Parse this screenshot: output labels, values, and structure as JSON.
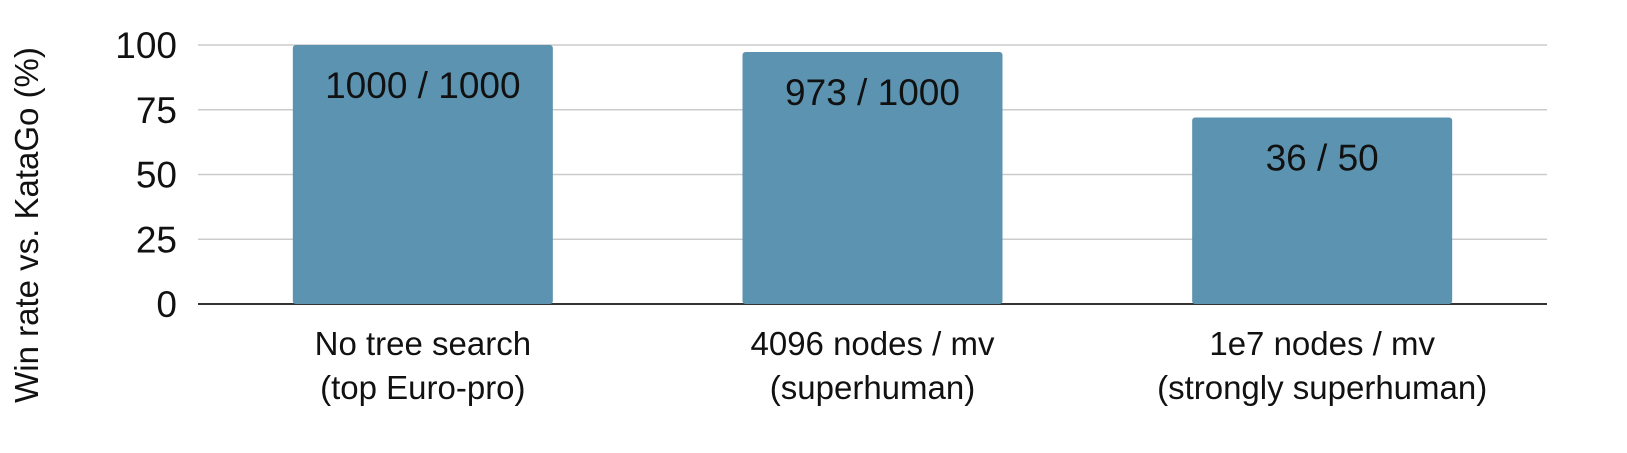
{
  "chart_data": {
    "type": "bar",
    "title": "",
    "xlabel": "",
    "ylabel": "Win rate vs. KataGo (%)",
    "ylim": [
      0,
      100
    ],
    "yticks": [
      0,
      25,
      50,
      75,
      100
    ],
    "grid": true,
    "categories": [
      [
        "No tree search",
        "(top Euro-pro)"
      ],
      [
        "4096 nodes / mv",
        "(superhuman)"
      ],
      [
        "1e7 nodes / mv",
        "(strongly superhuman)"
      ]
    ],
    "values": [
      100,
      97.3,
      72
    ],
    "data_labels": [
      "1000 / 1000",
      "973 / 1000",
      "36 / 50"
    ],
    "bar_color": "#5b93b0",
    "grid_color": "#cccccc",
    "axis_color": "#333333",
    "label_color": "#111111"
  }
}
